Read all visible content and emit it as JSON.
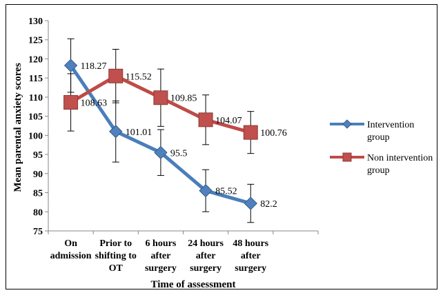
{
  "chart_data": {
    "type": "line",
    "title": "",
    "xlabel": "Time of assessment",
    "ylabel": "Mean parental anxiety scores",
    "ylim": [
      75,
      130
    ],
    "ytick_step": 5,
    "grid": false,
    "legend_position": "right",
    "categories": [
      [
        "On",
        "admission"
      ],
      [
        "Prior to",
        "shifting to",
        "OT"
      ],
      [
        "6 hours",
        "after",
        "surgery"
      ],
      [
        "24 hours",
        "after",
        "surgery"
      ],
      [
        "48 hours",
        "after",
        "surgery"
      ]
    ],
    "series": [
      {
        "name": "Intervention group",
        "legend_lines": [
          "Intervention",
          "group"
        ],
        "values": [
          118.27,
          101.01,
          95.5,
          85.52,
          82.2
        ],
        "labels": [
          "118.27",
          "101.01",
          "95.5",
          "85.52",
          "82.2"
        ],
        "error": [
          7,
          8,
          6,
          5.5,
          5
        ],
        "color": "#4a7ebb",
        "marker_color": "#4f81bd",
        "marker": "diamond"
      },
      {
        "name": "Non intervention group",
        "legend_lines": [
          "Non intervention",
          "group"
        ],
        "values": [
          108.63,
          115.52,
          109.85,
          104.07,
          100.76
        ],
        "labels": [
          "108.63",
          "115.52",
          "109.85",
          "104.07",
          "100.76"
        ],
        "error": [
          7.5,
          7,
          7.5,
          6.5,
          5.5
        ],
        "color": "#be4b48",
        "marker_color": "#c0504d",
        "marker": "square"
      }
    ]
  }
}
